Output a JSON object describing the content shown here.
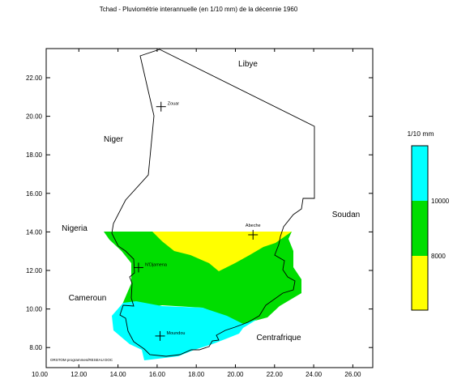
{
  "title": "Tchad - Pluviométrie interannuelle (en 1/10 mm) de la décennie 1960",
  "axes": {
    "x_ticks": [
      "10.00",
      "12.00",
      "14.00",
      "16.00",
      "18.00",
      "20.00",
      "22.00",
      "24.00",
      "26.00"
    ],
    "y_ticks": [
      "22.00",
      "20.00",
      "18.00",
      "16.00",
      "14.00",
      "12.00",
      "10.00",
      "8.00"
    ],
    "x_range": [
      10,
      27.5
    ],
    "y_range": [
      7.2,
      23.6
    ]
  },
  "regions": {
    "libye": "Libye",
    "niger": "Niger",
    "soudan": "Soudan",
    "nigeria": "Nigeria",
    "cameroun": "Cameroun",
    "centrafrique": "Centrafrique"
  },
  "cities": [
    {
      "name": "Zouar",
      "lon": 16.2,
      "lat": 20.5
    },
    {
      "name": "Abeche",
      "lon": 20.9,
      "lat": 13.85
    },
    {
      "name": "N'Djamena",
      "lon": 15.05,
      "lat": 12.15
    },
    {
      "name": "Moundou",
      "lon": 16.15,
      "lat": 8.6
    }
  ],
  "legend": {
    "title": "1/10 mm",
    "breaks": [
      "10000",
      "8000"
    ],
    "colors": {
      "high": "#00ffff",
      "mid": "#00dd00",
      "low": "#ffff00"
    }
  },
  "credit": "ORSTOM programmes/RESEAU DOC"
}
